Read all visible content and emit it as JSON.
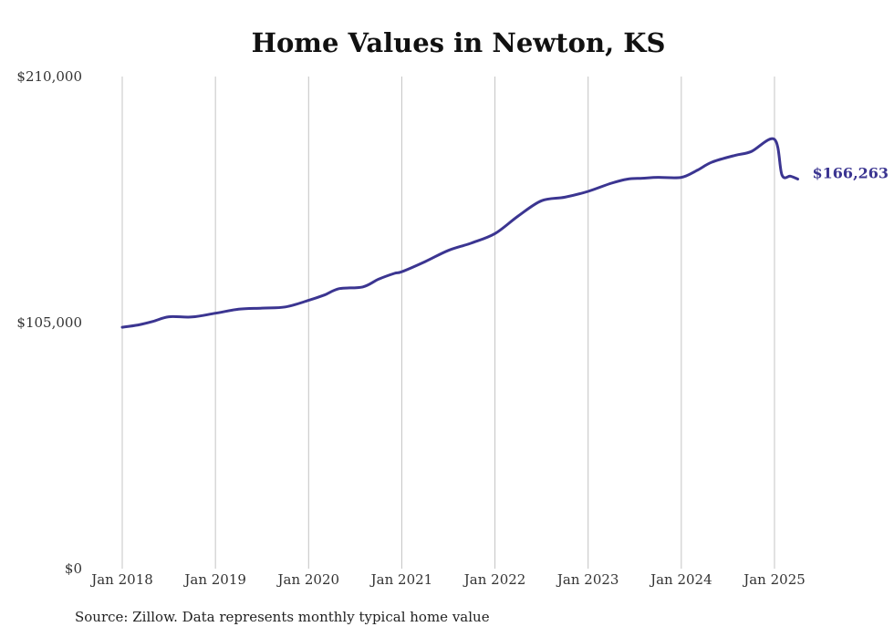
{
  "chart_data": {
    "type": "line",
    "title": "Home Values in Newton, KS",
    "xlabel": "",
    "ylabel": "",
    "ylim": [
      0,
      210000
    ],
    "y_ticks": [
      "$0",
      "$105,000",
      "$210,000"
    ],
    "y_tick_values": [
      0,
      105000,
      210000
    ],
    "x_ticks": [
      "Jan 2018",
      "Jan 2019",
      "Jan 2020",
      "Jan 2021",
      "Jan 2022",
      "Jan 2023",
      "Jan 2024",
      "Jan 2025"
    ],
    "x_tick_values": [
      2018,
      2019,
      2020,
      2021,
      2022,
      2023,
      2024,
      2025
    ],
    "xlim": [
      2018,
      2025.25
    ],
    "grid": "vertical",
    "color": "#3b3591",
    "end_label": "$166,263",
    "series": [
      {
        "x": [
          2018.0,
          2018.17,
          2018.33,
          2018.5,
          2018.75,
          2019.0,
          2019.25,
          2019.5,
          2019.75,
          2020.0,
          2020.17,
          2020.33,
          2020.58,
          2020.75,
          2020.92,
          2021.0,
          2021.25,
          2021.5,
          2021.75,
          2022.0,
          2022.25,
          2022.5,
          2022.75,
          2023.0,
          2023.25,
          2023.42,
          2023.58,
          2023.75,
          2024.0,
          2024.17,
          2024.33,
          2024.58,
          2024.75,
          2025.0,
          2025.08,
          2025.17,
          2025.25
        ],
        "y": [
          103000,
          104000,
          105500,
          107500,
          107400,
          109000,
          110700,
          111200,
          111700,
          114500,
          116800,
          119500,
          120200,
          123500,
          126000,
          126700,
          131000,
          135800,
          139000,
          143000,
          150500,
          157000,
          158500,
          161000,
          164500,
          166200,
          166600,
          167000,
          167000,
          170000,
          173500,
          176400,
          178000,
          183200,
          168000,
          167500,
          166263
        ]
      }
    ]
  },
  "source": "Source: Zillow. Data represents monthly typical home value"
}
